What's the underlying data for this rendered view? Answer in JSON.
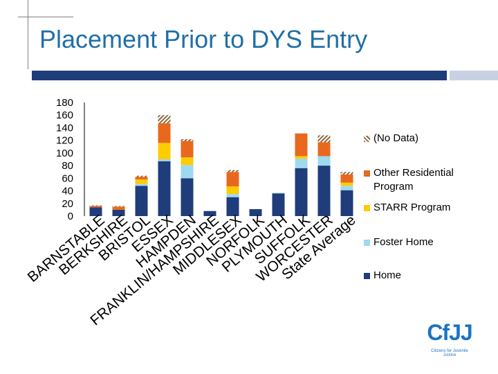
{
  "title": "Placement Prior to DYS Entry",
  "colors": {
    "home": "#1f3d7a",
    "foster": "#9fd9f0",
    "starr": "#ffcc00",
    "other_residential": "#e8691e",
    "no_data": "#8a6a3c",
    "accent_dark": "#1f3d7a",
    "accent_light": "#c7d1e3",
    "title": "#1f6fa8"
  },
  "chart_data": {
    "type": "bar",
    "stacked": true,
    "title": "",
    "xlabel": "",
    "ylabel": "",
    "ylim": [
      0,
      180
    ],
    "yticks": [
      0,
      20,
      40,
      60,
      80,
      100,
      120,
      140,
      160,
      180
    ],
    "categories": [
      "BARNSTABLE",
      "BERKSHIRE",
      "BRISTOL",
      "ESSEX",
      "HAMPDEN",
      "FRANKLIN/HAMPSHIRE",
      "MIDDLESEX",
      "NORFOLK",
      "PLYMOUTH",
      "SUFFOLK",
      "WORCESTER",
      "State Average"
    ],
    "series": [
      {
        "name": "Home",
        "color_key": "home",
        "values": [
          14,
          10,
          48,
          87,
          60,
          8,
          30,
          11,
          36,
          76,
          80,
          41
        ]
      },
      {
        "name": "Foster Home",
        "color_key": "foster",
        "values": [
          0,
          0,
          3,
          3,
          21,
          0,
          5,
          0,
          1,
          15,
          15,
          7
        ]
      },
      {
        "name": "STARR Program",
        "color_key": "starr",
        "values": [
          0,
          0,
          7,
          26,
          12,
          0,
          12,
          0,
          0,
          4,
          0,
          5
        ]
      },
      {
        "name": "Other Residential Program",
        "color_key": "other_residential",
        "values": [
          2,
          5,
          4,
          31,
          26,
          0,
          23,
          0,
          0,
          36,
          22,
          13
        ]
      },
      {
        "name": "(No Data)",
        "color_key": "no_data",
        "values": [
          1,
          1,
          2,
          13,
          3,
          0,
          3,
          0,
          0,
          0,
          11,
          4
        ]
      }
    ],
    "legend": [
      "(No Data)",
      "Other Residential Program",
      "STARR Program",
      "Foster Home",
      "Home"
    ],
    "legend_position": "right"
  },
  "logo": {
    "text": "CfJJ",
    "tagline": "Citizens for Juvenile Justice"
  }
}
